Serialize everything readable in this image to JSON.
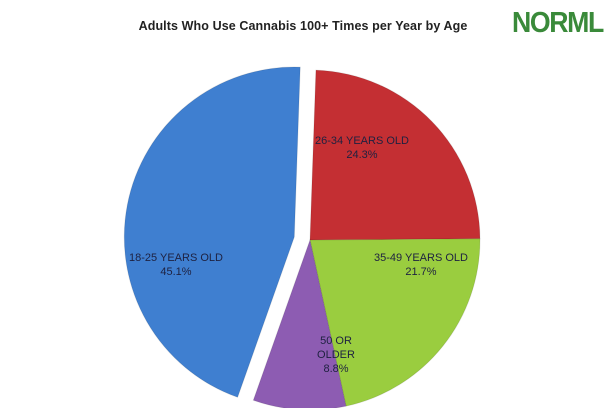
{
  "brand": {
    "logo_text": "NORML"
  },
  "chart_data": {
    "type": "pie",
    "title": "Adults Who Use Cannabis 100+ Times per Year by Age",
    "slices": [
      {
        "label": "26-34 YEARS OLD",
        "value_label": "24.3%",
        "value": 24.3,
        "color": "#c42f33"
      },
      {
        "label": "35-49 YEARS OLD",
        "value_label": "21.7%",
        "value": 21.7,
        "color": "#9acd3f"
      },
      {
        "label": "50 OR OLDER",
        "value_label": "8.8%",
        "value": 8.8,
        "color": "#8d5cb2"
      },
      {
        "label": "18-25 YEARS OLD",
        "value_label": "45.1%",
        "value": 45.1,
        "color": "#3f7fd0",
        "exploded": true
      }
    ]
  }
}
